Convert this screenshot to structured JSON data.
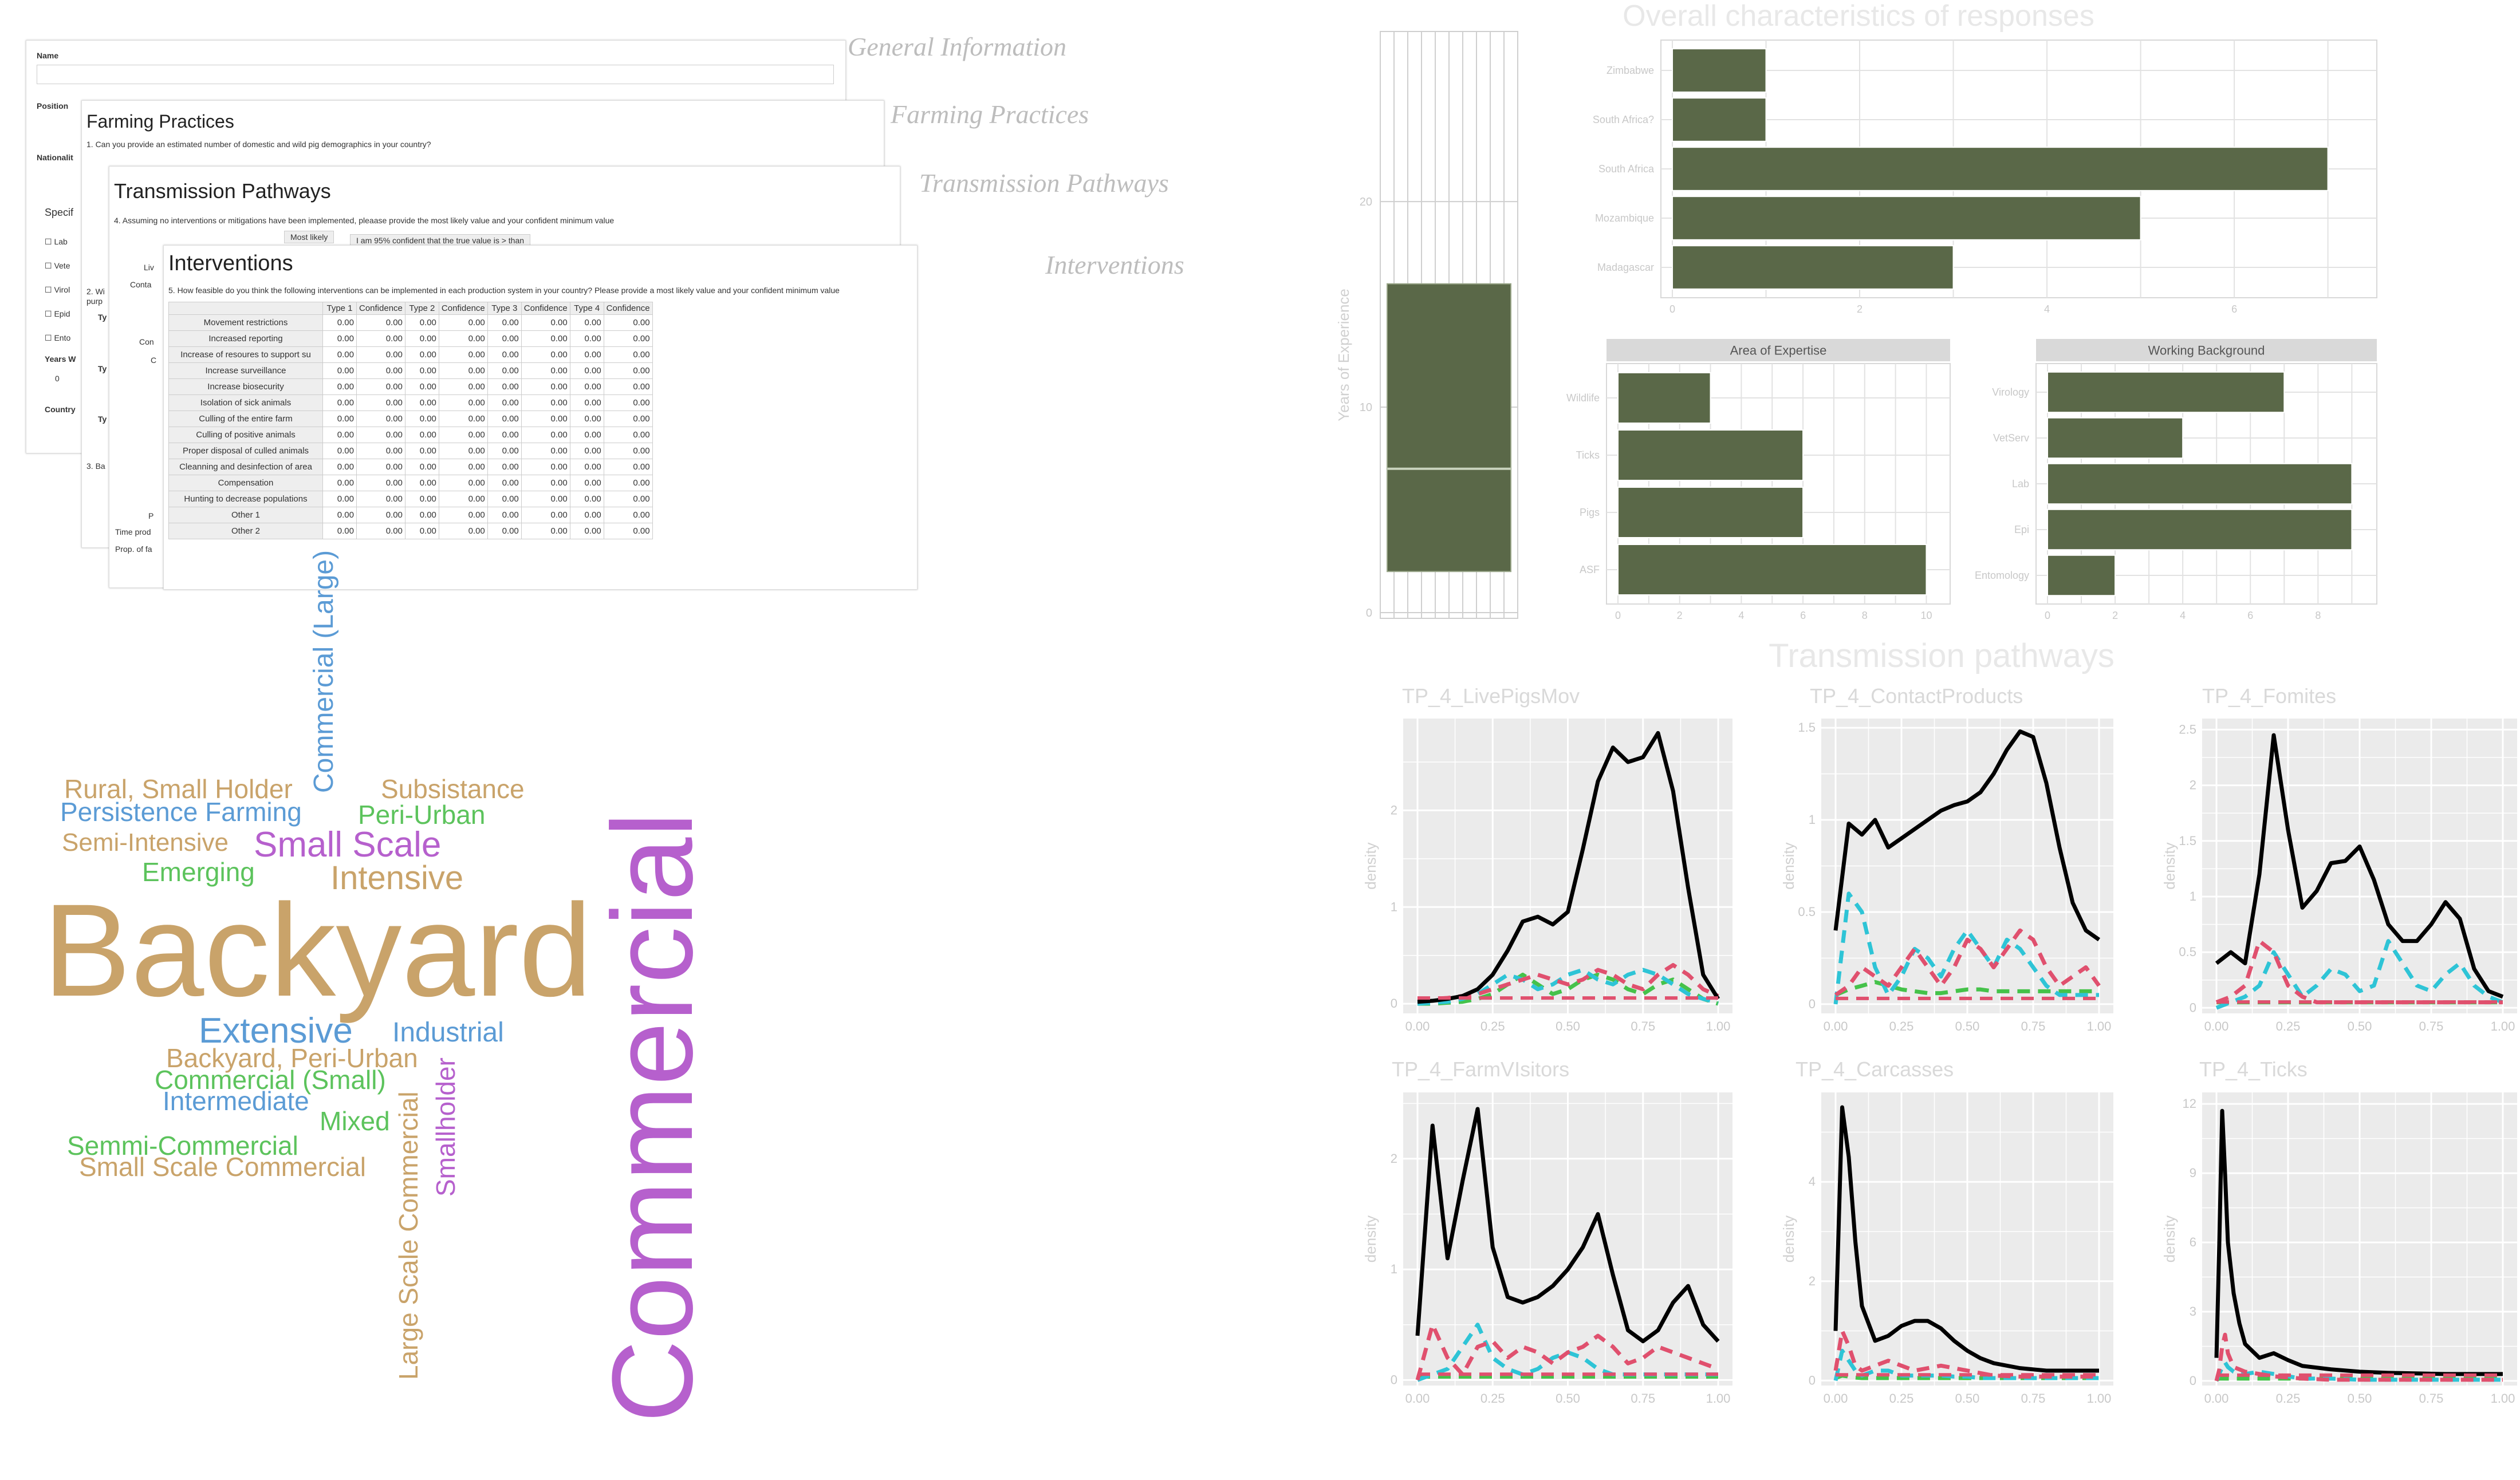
{
  "survey": {
    "section_labels": [
      "General Information",
      "Farming Practices",
      "Transmission Pathways",
      "Interventions"
    ],
    "general": {
      "fields": [
        "Name",
        "Position",
        "Nationalit",
        "Specif",
        "Years W",
        "Country"
      ],
      "checkbox_labels": [
        "Lab",
        "Vete",
        "Virol",
        "Epid",
        "Ento"
      ],
      "years_value": "0"
    },
    "farming": {
      "title": "Farming Practices",
      "question": "1. Can you provide an estimated number of domestic and wild pig demographics in your country?",
      "fragments": [
        "2. Wi",
        "purp",
        "Ty",
        "Ty",
        "Ty",
        "3. Ba"
      ]
    },
    "transmission": {
      "title": "Transmission Pathways",
      "question": "4. Assuming no interventions or mitigations have been implemented, pleaase provide the most likely value and your confident minimum value",
      "most_likely": "Most likely",
      "confident": "I am 95% confident that the true value is > than",
      "fragments": [
        "Liv",
        "Conta",
        "Con",
        "C",
        "P",
        "Time prod",
        "Prop. of fa"
      ]
    },
    "interventions": {
      "title": "Interventions",
      "question": "5. How feasible do you think the following interventions can be implemented in each production system in your country? Please provide a most likely value and your confident minimum value",
      "headers": [
        "",
        "Type 1",
        "Confidence",
        "Type 2",
        "Confidence",
        "Type 3",
        "Confidence",
        "Type 4",
        "Confidence"
      ],
      "rows": [
        "Movement restrictions",
        "Increased reporting",
        "Increase of resoures to support su",
        "Increase surveillance",
        "Increase biosecurity",
        "Isolation of sick animals",
        "Culling of the entire farm",
        "Culling of positive animals",
        "Proper disposal of culled animals",
        "Cleanning and desinfection of area",
        "Compensation",
        "Hunting to decrease populations",
        "Other 1",
        "Other 2"
      ],
      "cell_value": "0.00"
    }
  },
  "wordcloud": [
    {
      "text": "Commercial (Large)",
      "color": "#5b9bd5"
    },
    {
      "text": "Rural, Small Holder",
      "color": "#c9a36a"
    },
    {
      "text": "Subsistance",
      "color": "#c9a36a"
    },
    {
      "text": "Persistence Farming",
      "color": "#5b9bd5"
    },
    {
      "text": "Peri-Urban",
      "color": "#5cc35c"
    },
    {
      "text": "Semi-Intensive",
      "color": "#c9a36a"
    },
    {
      "text": "Small Scale",
      "color": "#b660cd"
    },
    {
      "text": "Emerging",
      "color": "#5cc35c"
    },
    {
      "text": "Intensive",
      "color": "#c9a36a"
    },
    {
      "text": "Backyard",
      "color": "#c9a36a"
    },
    {
      "text": "Commercial",
      "color": "#b660cd"
    },
    {
      "text": "Extensive",
      "color": "#5b9bd5"
    },
    {
      "text": "Industrial",
      "color": "#5b9bd5"
    },
    {
      "text": "Backyard, Peri-Urban",
      "color": "#c9a36a"
    },
    {
      "text": "Commercial (Small)",
      "color": "#5cc35c"
    },
    {
      "text": "Intermediate",
      "color": "#5b9bd5"
    },
    {
      "text": "Mixed",
      "color": "#5cc35c"
    },
    {
      "text": "Large Scale Commercial",
      "color": "#c9a36a"
    },
    {
      "text": "Smallholder",
      "color": "#b660cd"
    },
    {
      "text": "Semmi-Commercial",
      "color": "#5cc35c"
    },
    {
      "text": "Small Scale Commercial",
      "color": "#c9a36a"
    }
  ],
  "colors": {
    "bar_fill": "#5a6848",
    "panel_bg": "#ebebeb",
    "strip_bg": "#d9d9d9",
    "faded_text": "#bdbdbd",
    "series_dashed": [
      "#000000",
      "#e0506e",
      "#2ec4d6",
      "#45c24a",
      "#a3a3a3",
      "#c04bc7",
      "#3a7bd5",
      "#f0c419"
    ]
  },
  "overall": {
    "title": "Overall characteristics of responses"
  },
  "transmission_title": "Transmission pathways",
  "chart_data": [
    {
      "type": "box",
      "ylabel": "Years of Experience",
      "yticks": [
        0,
        10,
        20
      ],
      "ylim": [
        0,
        28
      ],
      "q1": 2,
      "median": 7,
      "q3": 16
    },
    {
      "type": "bar",
      "orientation": "horizontal",
      "categories": [
        "Zimbabwe",
        "South Africa?",
        "South Africa",
        "Mozambique",
        "Madagascar"
      ],
      "values": [
        1,
        1,
        7,
        5,
        3
      ],
      "xticks": [
        0,
        2,
        4,
        6
      ],
      "xlim": [
        0,
        7.4
      ]
    },
    {
      "type": "bar",
      "orientation": "horizontal",
      "title": "Area of Expertise",
      "categories": [
        "Wildlife",
        "Ticks",
        "Pigs",
        "ASF"
      ],
      "values": [
        3,
        6,
        6,
        10
      ],
      "xticks": [
        0,
        2,
        4,
        6,
        8,
        10
      ],
      "xlim": [
        0,
        10.4
      ]
    },
    {
      "type": "bar",
      "orientation": "horizontal",
      "title": "Working Background",
      "categories": [
        "Virology",
        "VetServ",
        "Lab",
        "Epi",
        "Entomology"
      ],
      "values": [
        7,
        4,
        9,
        9,
        2
      ],
      "xticks": [
        0,
        2,
        4,
        6,
        8
      ],
      "xlim": [
        0,
        9.4
      ]
    },
    {
      "type": "line",
      "title": "TP_4_LivePigsMov",
      "ylabel": "density",
      "xticks": [
        0.0,
        0.25,
        0.5,
        0.75,
        1.0
      ],
      "yticks": [
        0,
        1,
        2
      ],
      "ylim": [
        -0.1,
        2.95
      ],
      "x": [
        0,
        0.05,
        0.1,
        0.15,
        0.2,
        0.25,
        0.3,
        0.35,
        0.4,
        0.45,
        0.5,
        0.55,
        0.6,
        0.65,
        0.7,
        0.75,
        0.8,
        0.85,
        0.9,
        0.95,
        1.0
      ],
      "series": [
        {
          "values": [
            0.02,
            0.03,
            0.05,
            0.08,
            0.15,
            0.3,
            0.55,
            0.85,
            0.9,
            0.82,
            0.95,
            1.6,
            2.3,
            2.65,
            2.5,
            2.55,
            2.8,
            2.2,
            1.2,
            0.3,
            0.05
          ]
        },
        {
          "values": [
            0.05,
            0.05,
            0.06,
            0.08,
            0.1,
            0.15,
            0.2,
            0.25,
            0.3,
            0.25,
            0.2,
            0.25,
            0.35,
            0.3,
            0.2,
            0.15,
            0.3,
            0.4,
            0.3,
            0.15,
            0.08
          ]
        },
        {
          "values": [
            0.0,
            0.01,
            0.02,
            0.05,
            0.1,
            0.2,
            0.3,
            0.25,
            0.15,
            0.2,
            0.3,
            0.35,
            0.25,
            0.2,
            0.3,
            0.35,
            0.3,
            0.2,
            0.1,
            0.05,
            0.01
          ]
        },
        {
          "values": [
            0.0,
            0.0,
            0.01,
            0.02,
            0.05,
            0.1,
            0.2,
            0.3,
            0.2,
            0.1,
            0.15,
            0.25,
            0.3,
            0.25,
            0.15,
            0.1,
            0.2,
            0.25,
            0.15,
            0.05,
            0.0
          ]
        }
      ]
    },
    {
      "type": "line",
      "title": "TP_4_ContactProducts",
      "ylabel": "density",
      "xticks": [
        0.0,
        0.25,
        0.5,
        0.75,
        1.0
      ],
      "yticks": [
        0,
        0.5,
        1.0,
        1.5
      ],
      "ylim": [
        -0.05,
        1.55
      ],
      "x": [
        0,
        0.05,
        0.1,
        0.15,
        0.2,
        0.25,
        0.3,
        0.35,
        0.4,
        0.45,
        0.5,
        0.55,
        0.6,
        0.65,
        0.7,
        0.75,
        0.8,
        0.85,
        0.9,
        0.95,
        1.0
      ],
      "series": [
        {
          "values": [
            0.4,
            0.98,
            0.92,
            1.0,
            0.85,
            0.9,
            0.95,
            1.0,
            1.05,
            1.08,
            1.1,
            1.15,
            1.25,
            1.38,
            1.48,
            1.45,
            1.2,
            0.85,
            0.55,
            0.4,
            0.35
          ]
        },
        {
          "values": [
            0.05,
            0.1,
            0.2,
            0.15,
            0.1,
            0.2,
            0.3,
            0.2,
            0.1,
            0.2,
            0.35,
            0.3,
            0.2,
            0.3,
            0.4,
            0.35,
            0.2,
            0.1,
            0.15,
            0.2,
            0.1
          ]
        },
        {
          "values": [
            0.0,
            0.6,
            0.5,
            0.2,
            0.05,
            0.15,
            0.3,
            0.25,
            0.15,
            0.3,
            0.4,
            0.3,
            0.2,
            0.35,
            0.3,
            0.2,
            0.1,
            0.05,
            0.05,
            0.05,
            0.05
          ]
        },
        {
          "values": [
            0.05,
            0.08,
            0.1,
            0.12,
            0.1,
            0.08,
            0.07,
            0.06,
            0.06,
            0.07,
            0.08,
            0.08,
            0.07,
            0.07,
            0.07,
            0.07,
            0.07,
            0.07,
            0.07,
            0.07,
            0.07
          ]
        }
      ]
    },
    {
      "type": "line",
      "title": "TP_4_Fomites",
      "ylabel": "density",
      "xticks": [
        0.0,
        0.25,
        0.5,
        0.75,
        1.0
      ],
      "yticks": [
        0,
        0.5,
        1.0,
        1.5,
        2.0,
        2.5
      ],
      "ylim": [
        -0.05,
        2.6
      ],
      "x": [
        0,
        0.05,
        0.1,
        0.15,
        0.2,
        0.25,
        0.3,
        0.35,
        0.4,
        0.45,
        0.5,
        0.55,
        0.6,
        0.65,
        0.7,
        0.75,
        0.8,
        0.85,
        0.9,
        0.95,
        1.0
      ],
      "series": [
        {
          "values": [
            0.4,
            0.5,
            0.4,
            1.2,
            2.45,
            1.6,
            0.9,
            1.05,
            1.3,
            1.32,
            1.45,
            1.15,
            0.75,
            0.6,
            0.6,
            0.75,
            0.95,
            0.8,
            0.35,
            0.15,
            0.1
          ]
        },
        {
          "values": [
            0.05,
            0.1,
            0.2,
            0.6,
            0.5,
            0.2,
            0.1,
            0.05,
            0.05,
            0.05,
            0.05,
            0.05,
            0.05,
            0.05,
            0.05,
            0.05,
            0.05,
            0.05,
            0.05,
            0.05,
            0.05
          ]
        },
        {
          "values": [
            0.0,
            0.05,
            0.1,
            0.2,
            0.5,
            0.3,
            0.1,
            0.2,
            0.35,
            0.3,
            0.15,
            0.2,
            0.6,
            0.4,
            0.2,
            0.15,
            0.3,
            0.4,
            0.2,
            0.1,
            0.05
          ]
        },
        {
          "values": [
            0.05,
            0.05,
            0.05,
            0.05,
            0.05,
            0.05,
            0.05,
            0.05,
            0.05,
            0.05,
            0.05,
            0.05,
            0.05,
            0.05,
            0.05,
            0.05,
            0.05,
            0.05,
            0.05,
            0.05,
            0.05
          ]
        }
      ]
    },
    {
      "type": "line",
      "title": "TP_4_FarmVIsitors",
      "ylabel": "density",
      "xticks": [
        0.0,
        0.25,
        0.5,
        0.75,
        1.0
      ],
      "yticks": [
        0,
        1,
        2
      ],
      "ylim": [
        -0.05,
        2.6
      ],
      "x": [
        0,
        0.05,
        0.1,
        0.15,
        0.2,
        0.25,
        0.3,
        0.35,
        0.4,
        0.45,
        0.5,
        0.55,
        0.6,
        0.65,
        0.7,
        0.75,
        0.8,
        0.85,
        0.9,
        0.95,
        1.0
      ],
      "series": [
        {
          "values": [
            0.4,
            2.3,
            1.1,
            1.8,
            2.45,
            1.2,
            0.75,
            0.7,
            0.75,
            0.85,
            1.0,
            1.2,
            1.5,
            0.95,
            0.45,
            0.35,
            0.45,
            0.7,
            0.85,
            0.5,
            0.35
          ]
        },
        {
          "values": [
            0.0,
            0.5,
            0.2,
            0.05,
            0.3,
            0.35,
            0.2,
            0.3,
            0.25,
            0.15,
            0.25,
            0.3,
            0.4,
            0.3,
            0.15,
            0.2,
            0.3,
            0.25,
            0.2,
            0.15,
            0.1
          ]
        },
        {
          "values": [
            0.0,
            0.05,
            0.1,
            0.3,
            0.5,
            0.2,
            0.1,
            0.05,
            0.1,
            0.2,
            0.25,
            0.2,
            0.1,
            0.05,
            0.05,
            0.05,
            0.05,
            0.05,
            0.05,
            0.05,
            0.05
          ]
        },
        {
          "values": [
            0.03,
            0.03,
            0.03,
            0.03,
            0.03,
            0.03,
            0.03,
            0.03,
            0.03,
            0.03,
            0.03,
            0.03,
            0.03,
            0.03,
            0.03,
            0.03,
            0.03,
            0.03,
            0.03,
            0.03,
            0.03
          ]
        }
      ]
    },
    {
      "type": "line",
      "title": "TP_4_Carcasses",
      "ylabel": "density",
      "xticks": [
        0.0,
        0.25,
        0.5,
        0.75,
        1.0
      ],
      "yticks": [
        0,
        2,
        4
      ],
      "ylim": [
        -0.1,
        5.8
      ],
      "x": [
        0,
        0.025,
        0.05,
        0.075,
        0.1,
        0.15,
        0.2,
        0.25,
        0.3,
        0.35,
        0.4,
        0.45,
        0.5,
        0.55,
        0.6,
        0.7,
        0.8,
        0.9,
        1.0
      ],
      "series": [
        {
          "values": [
            1.0,
            5.5,
            4.5,
            2.8,
            1.5,
            0.8,
            0.9,
            1.1,
            1.2,
            1.2,
            1.05,
            0.8,
            0.6,
            0.45,
            0.35,
            0.25,
            0.2,
            0.2,
            0.2
          ]
        },
        {
          "values": [
            0.2,
            1.0,
            0.7,
            0.3,
            0.2,
            0.3,
            0.4,
            0.3,
            0.2,
            0.25,
            0.3,
            0.25,
            0.2,
            0.15,
            0.1,
            0.08,
            0.08,
            0.08,
            0.08
          ]
        },
        {
          "values": [
            0.0,
            0.6,
            0.4,
            0.2,
            0.1,
            0.2,
            0.2,
            0.1,
            0.1,
            0.1,
            0.1,
            0.08,
            0.08,
            0.05,
            0.05,
            0.05,
            0.05,
            0.05,
            0.05
          ]
        },
        {
          "values": [
            0.05,
            0.1,
            0.08,
            0.06,
            0.05,
            0.05,
            0.05,
            0.05,
            0.05,
            0.05,
            0.05,
            0.05,
            0.05,
            0.05,
            0.05,
            0.05,
            0.05,
            0.05,
            0.05
          ]
        }
      ]
    },
    {
      "type": "line",
      "title": "TP_4_Ticks",
      "ylabel": "density",
      "xticks": [
        0.0,
        0.25,
        0.5,
        0.75,
        1.0
      ],
      "yticks": [
        0,
        3,
        6,
        9,
        12
      ],
      "ylim": [
        -0.2,
        12.5
      ],
      "x": [
        0,
        0.01,
        0.02,
        0.03,
        0.04,
        0.06,
        0.08,
        0.1,
        0.15,
        0.2,
        0.25,
        0.3,
        0.4,
        0.5,
        0.6,
        0.8,
        1.0
      ],
      "series": [
        {
          "values": [
            1.0,
            6.0,
            11.7,
            9.0,
            6.0,
            3.8,
            2.5,
            1.6,
            1.0,
            1.2,
            0.9,
            0.65,
            0.5,
            0.4,
            0.35,
            0.3,
            0.3
          ]
        },
        {
          "values": [
            0.0,
            0.5,
            1.5,
            2.0,
            1.2,
            0.6,
            0.5,
            0.4,
            0.3,
            0.2,
            0.15,
            0.1,
            0.05,
            0.05,
            0.05,
            0.05,
            0.05
          ]
        },
        {
          "values": [
            0.0,
            0.3,
            0.6,
            0.8,
            0.6,
            0.4,
            0.3,
            0.3,
            0.4,
            0.3,
            0.2,
            0.1,
            0.1,
            0.05,
            0.05,
            0.05,
            0.05
          ]
        },
        {
          "values": [
            0.05,
            0.1,
            0.1,
            0.1,
            0.1,
            0.1,
            0.1,
            0.1,
            0.1,
            0.1,
            0.1,
            0.1,
            0.1,
            0.1,
            0.1,
            0.1,
            0.1
          ]
        }
      ]
    }
  ]
}
